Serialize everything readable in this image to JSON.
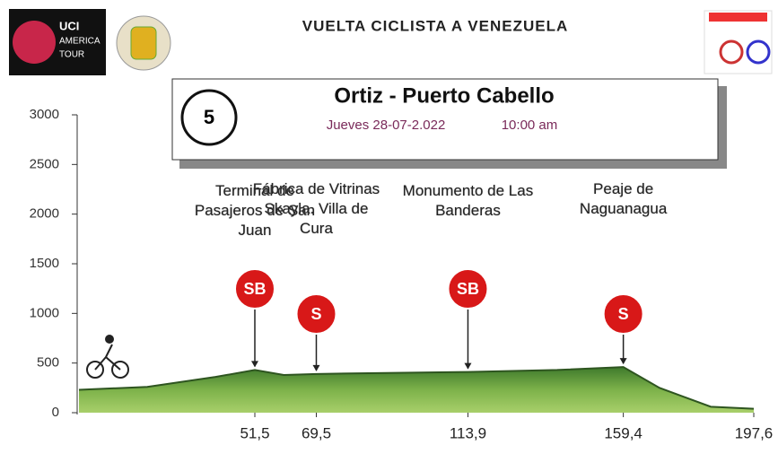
{
  "header": {
    "title": "VUELTA CICLISTA A VENEZUELA",
    "logo_lines": [
      "UCI",
      "AMERICA",
      "TOUR"
    ]
  },
  "stage": {
    "number": "5",
    "route": "Ortiz - Puerto Cabello",
    "date": "Jueves 28-07-2.022",
    "time": "10:00 am"
  },
  "chart_data": {
    "type": "area",
    "x": [
      0,
      20,
      40,
      51.5,
      60,
      69.5,
      90,
      113.9,
      140,
      159.4,
      170,
      185,
      197.6
    ],
    "values": [
      230,
      260,
      360,
      430,
      380,
      390,
      400,
      410,
      430,
      460,
      250,
      60,
      40
    ],
    "xlim": [
      0,
      197.6
    ],
    "xticks": [
      {
        "value": 51.5,
        "label": "51,5"
      },
      {
        "value": 69.5,
        "label": "69,5"
      },
      {
        "value": 113.9,
        "label": "113,9"
      },
      {
        "value": 159.4,
        "label": "159,4"
      },
      {
        "value": 197.6,
        "label": "197,6"
      }
    ],
    "ylim": [
      0,
      3000
    ],
    "yticks": [
      0,
      500,
      1000,
      1500,
      2000,
      2500,
      3000
    ],
    "color": "#5f9a3c",
    "annotations": [
      {
        "x": 51.5,
        "marker": "SB",
        "text": "Terminal de Pasajeros de San Juan"
      },
      {
        "x": 69.5,
        "marker": "S",
        "text": "Fábrica de Vitrinas Skayla. Villa de Cura"
      },
      {
        "x": 113.9,
        "marker": "SB",
        "text": "Monumento de Las Banderas"
      },
      {
        "x": 159.4,
        "marker": "S",
        "text": "Peaje de Naguanagua"
      }
    ]
  }
}
